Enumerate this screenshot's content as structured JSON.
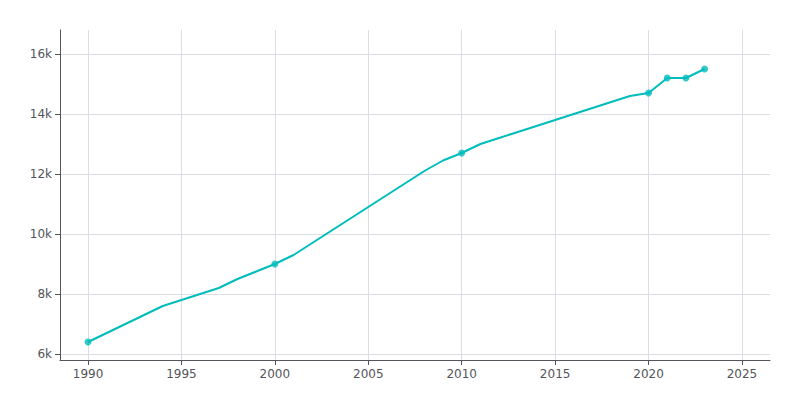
{
  "chart_data": {
    "type": "line",
    "series": [
      {
        "type": "line",
        "color": "#00BCBC",
        "x": [
          1990,
          1991,
          1992,
          1993,
          1994,
          1995,
          1996,
          1997,
          1998,
          1999,
          2000,
          2001,
          2002,
          2003,
          2004,
          2005,
          2006,
          2007,
          2008,
          2009,
          2010,
          2011,
          2012,
          2013,
          2014,
          2015,
          2016,
          2017,
          2018,
          2019,
          2020,
          2021,
          2022,
          2023
        ],
        "values": [
          6400,
          6700,
          7000,
          7300,
          7600,
          7800,
          8000,
          8200,
          8500,
          8750,
          9000,
          9300,
          9700,
          10100,
          10500,
          10900,
          11300,
          11700,
          12100,
          12450,
          12700,
          13000,
          13200,
          13400,
          13600,
          13800,
          14000,
          14200,
          14400,
          14600,
          14700,
          15200,
          15200,
          15500
        ]
      },
      {
        "type": "scatter",
        "color": "#00BCBC",
        "marker": "circle",
        "x": [
          1990,
          2000,
          2010,
          2020,
          2021,
          2022,
          2023
        ],
        "values": [
          6400,
          9000,
          12700,
          14700,
          15200,
          15200,
          15500
        ]
      }
    ],
    "xlim": [
      1988.5,
      2026.5
    ],
    "xticks": [
      1990,
      1995,
      2000,
      2005,
      2010,
      2015,
      2020,
      2025
    ],
    "ylim": [
      5800,
      16800
    ],
    "yticks": [
      {
        "value": 6000,
        "label": "6k"
      },
      {
        "value": 8000,
        "label": "8k"
      },
      {
        "value": 10000,
        "label": "10k"
      },
      {
        "value": 12000,
        "label": "12k"
      },
      {
        "value": 14000,
        "label": "14k"
      },
      {
        "value": 16000,
        "label": "16k"
      }
    ],
    "grid": true
  }
}
